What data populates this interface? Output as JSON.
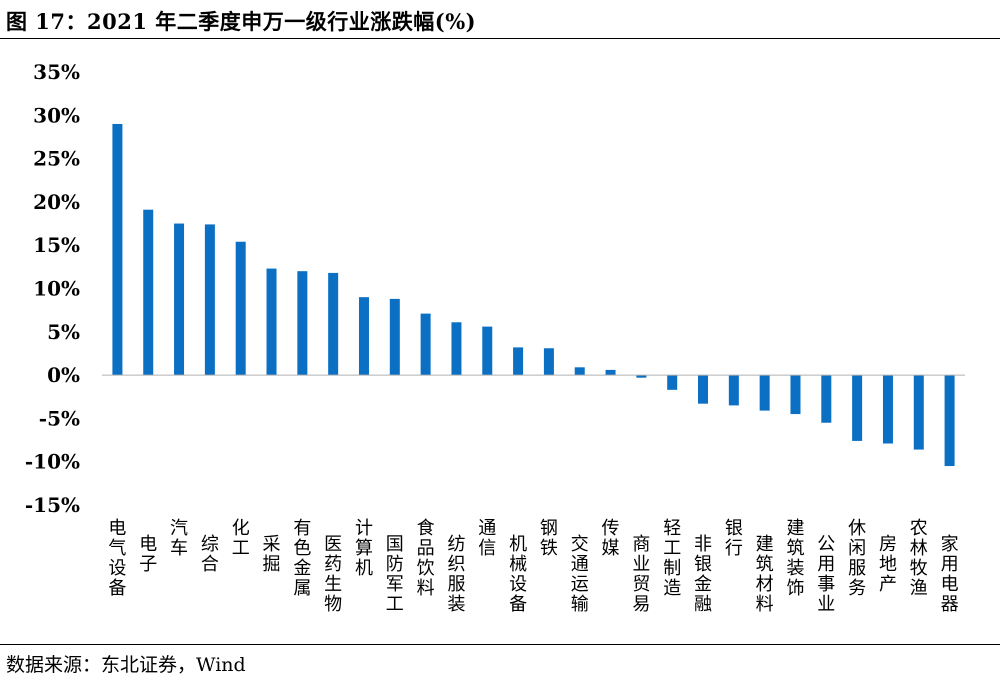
{
  "header": {
    "title": "图 17：2021 年二季度申万一级行业涨跌幅(%)"
  },
  "footer": {
    "source": "数据来源：东北证券，Wind"
  },
  "colors": {
    "bar": "#0b6fc4",
    "axis": "#b0b0b0"
  },
  "chart_data": {
    "type": "bar",
    "title": "图 17：2021 年二季度申万一级行业涨跌幅(%)",
    "xlabel": "",
    "ylabel": "",
    "ylim": [
      -15,
      35
    ],
    "yticks": [
      "35%",
      "30%",
      "25%",
      "20%",
      "15%",
      "10%",
      "5%",
      "0%",
      "-5%",
      "-10%",
      "-15%"
    ],
    "ytick_values": [
      35,
      30,
      25,
      20,
      15,
      10,
      5,
      0,
      -5,
      -10,
      -15
    ],
    "grid": false,
    "categories": [
      "电气设备",
      "电子",
      "汽车",
      "综合",
      "化工",
      "采掘",
      "有色金属",
      "医药生物",
      "计算机",
      "国防军工",
      "食品饮料",
      "纺织服装",
      "通信",
      "机械设备",
      "钢铁",
      "交通运输",
      "传媒",
      "商业贸易",
      "轻工制造",
      "非银金融",
      "银行",
      "建筑材料",
      "建筑装饰",
      "公用事业",
      "休闲服务",
      "房地产",
      "农林牧渔",
      "家用电器"
    ],
    "values": [
      29.0,
      19.1,
      17.5,
      17.4,
      15.4,
      12.3,
      12.0,
      11.8,
      9.0,
      8.8,
      7.1,
      6.1,
      5.6,
      3.2,
      3.1,
      0.9,
      0.6,
      -0.3,
      -1.7,
      -3.3,
      -3.5,
      -4.1,
      -4.5,
      -5.5,
      -7.6,
      -7.9,
      -8.6,
      -10.5
    ]
  }
}
